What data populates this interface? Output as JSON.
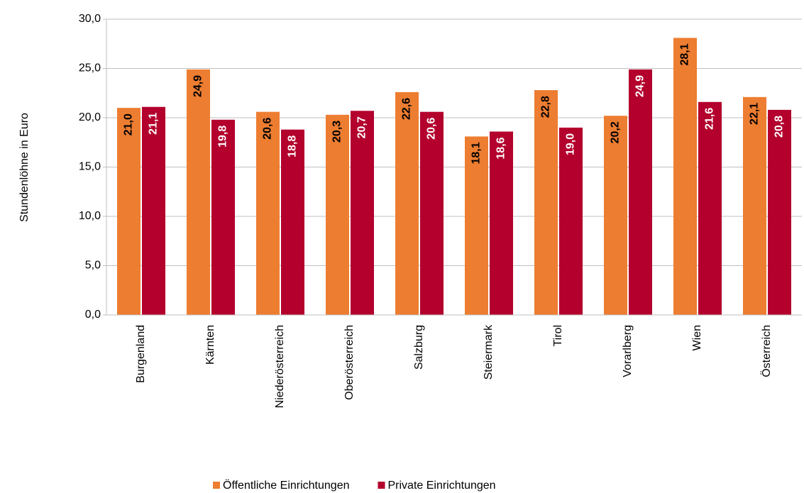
{
  "chart_data": {
    "type": "bar",
    "y_label": "Stundenlöhne in Euro",
    "categories": [
      "Burgenland",
      "Kärnten",
      "Niederösterreich",
      "Oberösterreich",
      "Salzburg",
      "Steiermark",
      "Tirol",
      "Vorarlberg",
      "Wien",
      "Österreich"
    ],
    "series": [
      {
        "name": "Öffentliche Einrichtungen",
        "color": "#ed7d31",
        "label_color": "#000000",
        "values": [
          21.0,
          24.9,
          20.6,
          20.3,
          22.6,
          18.1,
          22.8,
          20.2,
          28.1,
          22.1
        ],
        "value_labels": [
          "21,0",
          "24,9",
          "20,6",
          "20,3",
          "22,6",
          "18,1",
          "22,8",
          "20,2",
          "28,1",
          "22,1"
        ]
      },
      {
        "name": "Private Einrichtungen",
        "color": "#b3002d",
        "label_color": "#ffffff",
        "values": [
          21.1,
          19.8,
          18.8,
          20.7,
          20.6,
          18.6,
          19.0,
          24.9,
          21.6,
          20.8
        ],
        "value_labels": [
          "21,1",
          "19,8",
          "18,8",
          "20,7",
          "20,6",
          "18,6",
          "19,0",
          "24,9",
          "21,6",
          "20,8"
        ]
      }
    ],
    "ylim": [
      0,
      30
    ],
    "yticks": [
      {
        "value": 0,
        "label": "0,0"
      },
      {
        "value": 5,
        "label": "5,0"
      },
      {
        "value": 10,
        "label": "10,0"
      },
      {
        "value": 15,
        "label": "15,0"
      },
      {
        "value": 20,
        "label": "20,0"
      },
      {
        "value": 25,
        "label": "25,0"
      },
      {
        "value": 30,
        "label": "30,0"
      }
    ],
    "grid": true
  }
}
